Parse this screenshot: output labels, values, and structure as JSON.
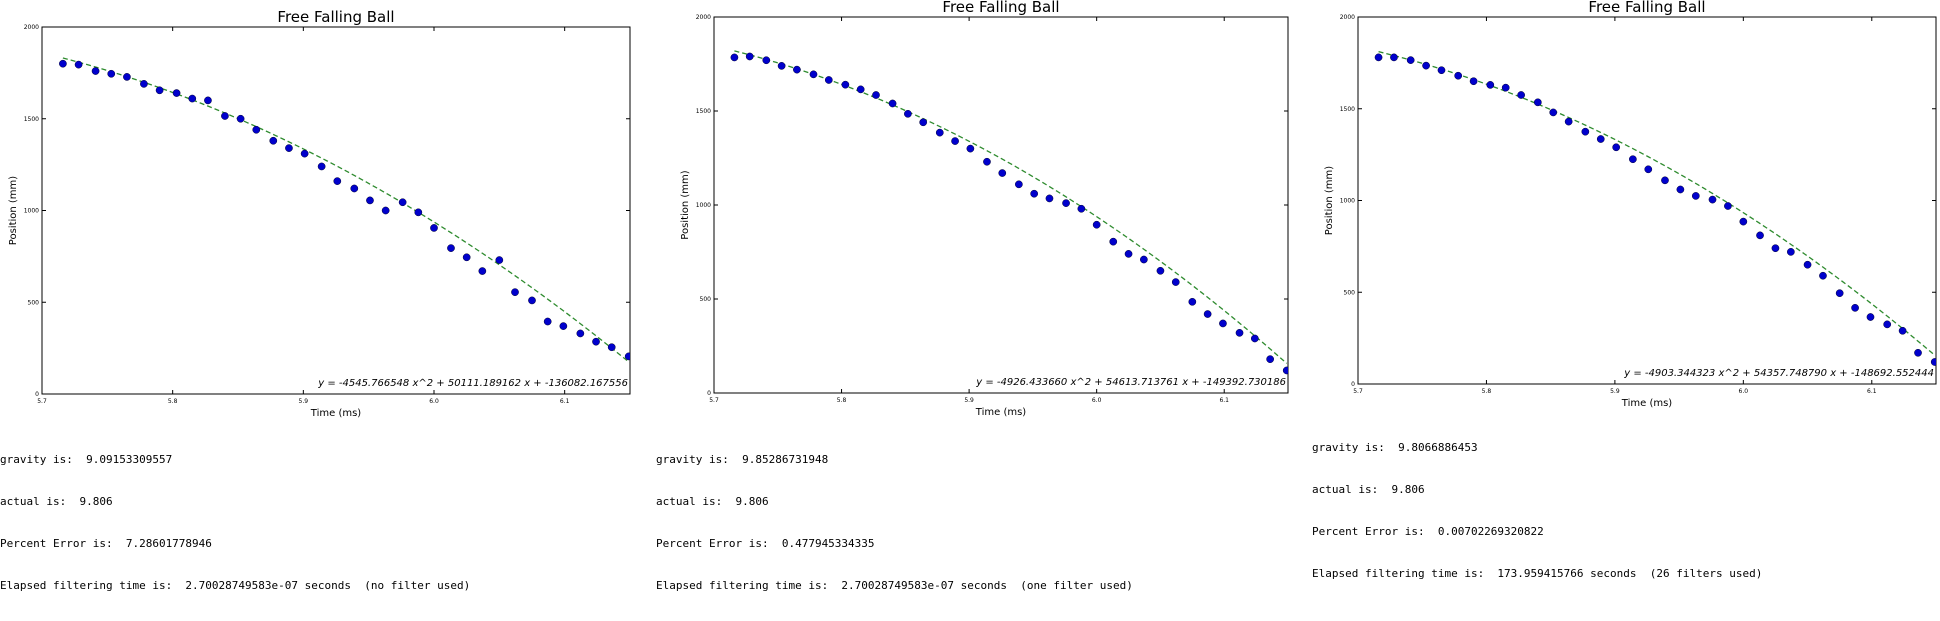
{
  "chart_data": [
    {
      "type": "scatter",
      "title": "Free Falling Ball",
      "xlabel": "Time (ms)",
      "ylabel": "Position (mm)",
      "xlim": [
        5.7,
        6.15
      ],
      "ylim": [
        0,
        2000
      ],
      "x_ticks": [
        "5.7",
        "5.8",
        "5.9",
        "6.0",
        "6.1"
      ],
      "y_ticks": [
        "0",
        "500",
        "1000",
        "1500",
        "2000"
      ],
      "fit_equation": "y = -4545.766548 x^2 + 50111.189162 x + -136082.167556",
      "fit": {
        "a": -4545.766548,
        "b": 50111.189162,
        "c": -136082.167556
      },
      "colors": {
        "points": "#0000cc",
        "fit": "#2e8b2e"
      },
      "grid": false,
      "x": [
        5.716,
        5.728,
        5.741,
        5.753,
        5.765,
        5.778,
        5.79,
        5.803,
        5.815,
        5.827,
        5.84,
        5.852,
        5.864,
        5.877,
        5.889,
        5.901,
        5.914,
        5.926,
        5.939,
        5.951,
        5.963,
        5.976,
        5.988,
        6.0,
        6.013,
        6.025,
        6.037,
        6.05,
        6.062,
        6.075,
        6.087,
        6.099,
        6.112,
        6.124,
        6.136,
        6.149
      ],
      "y": [
        1800,
        1795,
        1760,
        1745,
        1728,
        1690,
        1655,
        1640,
        1610,
        1600,
        1515,
        1500,
        1440,
        1380,
        1340,
        1310,
        1240,
        1160,
        1120,
        1055,
        1000,
        1045,
        990,
        905,
        795,
        745,
        670,
        730,
        555,
        510,
        395,
        370,
        330,
        285,
        255,
        205
      ],
      "stats": {
        "gravity": "gravity is:  9.09153309557",
        "actual": "actual is:  9.806",
        "percent_error": "Percent Error is:  7.28601778946",
        "elapsed": "Elapsed filtering time is:  2.70028749583e-07 seconds  (no filter used)"
      }
    },
    {
      "type": "scatter",
      "title": "Free Falling Ball",
      "xlabel": "Time (ms)",
      "ylabel": "Position (mm)",
      "xlim": [
        5.7,
        6.15
      ],
      "ylim": [
        0,
        2000
      ],
      "x_ticks": [
        "5.7",
        "5.8",
        "5.9",
        "6.0",
        "6.1"
      ],
      "y_ticks": [
        "0",
        "500",
        "1000",
        "1500",
        "2000"
      ],
      "fit_equation": "y = -4926.433660 x^2 + 54613.713761 x + -149392.730186",
      "fit": {
        "a": -4926.43366,
        "b": 54613.713761,
        "c": -149392.730186
      },
      "colors": {
        "points": "#0000cc",
        "fit": "#2e8b2e"
      },
      "grid": false,
      "x": [
        5.716,
        5.728,
        5.741,
        5.753,
        5.765,
        5.778,
        5.79,
        5.803,
        5.815,
        5.827,
        5.84,
        5.852,
        5.864,
        5.877,
        5.889,
        5.901,
        5.914,
        5.926,
        5.939,
        5.951,
        5.963,
        5.976,
        5.988,
        6.0,
        6.013,
        6.025,
        6.037,
        6.05,
        6.062,
        6.075,
        6.087,
        6.099,
        6.112,
        6.124,
        6.136,
        6.149
      ],
      "y": [
        1785,
        1790,
        1770,
        1740,
        1720,
        1695,
        1665,
        1640,
        1615,
        1585,
        1540,
        1485,
        1440,
        1385,
        1340,
        1300,
        1230,
        1170,
        1110,
        1060,
        1035,
        1010,
        980,
        895,
        805,
        740,
        710,
        650,
        590,
        485,
        420,
        370,
        320,
        290,
        180,
        120
      ],
      "stats": {
        "gravity": "gravity is:  9.85286731948",
        "actual": "actual is:  9.806",
        "percent_error": "Percent Error is:  0.477945334335",
        "elapsed": "Elapsed filtering time is:  2.70028749583e-07 seconds  (one filter used)"
      }
    },
    {
      "type": "scatter",
      "title": "Free Falling Ball",
      "xlabel": "Time (ms)",
      "ylabel": "Position (mm)",
      "xlim": [
        5.7,
        6.15
      ],
      "ylim": [
        0,
        2000
      ],
      "x_ticks": [
        "5.7",
        "5.8",
        "5.9",
        "6.0",
        "6.1"
      ],
      "y_ticks": [
        "0",
        "500",
        "1000",
        "1500",
        "2000"
      ],
      "fit_equation": "y = -4903.344323 x^2 + 54357.748790 x + -148692.552444",
      "fit": {
        "a": -4903.344323,
        "b": 54357.74879,
        "c": -148692.552444
      },
      "colors": {
        "points": "#0000cc",
        "fit": "#2e8b2e"
      },
      "grid": false,
      "x": [
        5.716,
        5.728,
        5.741,
        5.753,
        5.765,
        5.778,
        5.79,
        5.803,
        5.815,
        5.827,
        5.84,
        5.852,
        5.864,
        5.877,
        5.889,
        5.901,
        5.914,
        5.926,
        5.939,
        5.951,
        5.963,
        5.976,
        5.988,
        6.0,
        6.013,
        6.025,
        6.037,
        6.05,
        6.062,
        6.075,
        6.087,
        6.099,
        6.112,
        6.124,
        6.136,
        6.149
      ],
      "y": [
        1780,
        1780,
        1765,
        1735,
        1710,
        1680,
        1650,
        1630,
        1615,
        1575,
        1535,
        1480,
        1430,
        1375,
        1335,
        1290,
        1225,
        1170,
        1110,
        1060,
        1025,
        1005,
        970,
        885,
        810,
        740,
        720,
        650,
        590,
        495,
        415,
        365,
        325,
        290,
        170,
        120
      ],
      "stats": {
        "gravity": "gravity is:  9.8066886453",
        "actual": "actual is:  9.806",
        "percent_error": "Percent Error is:  0.00702269320822",
        "elapsed": "Elapsed filtering time is:  173.959415766 seconds  (26 filters used)"
      }
    }
  ]
}
